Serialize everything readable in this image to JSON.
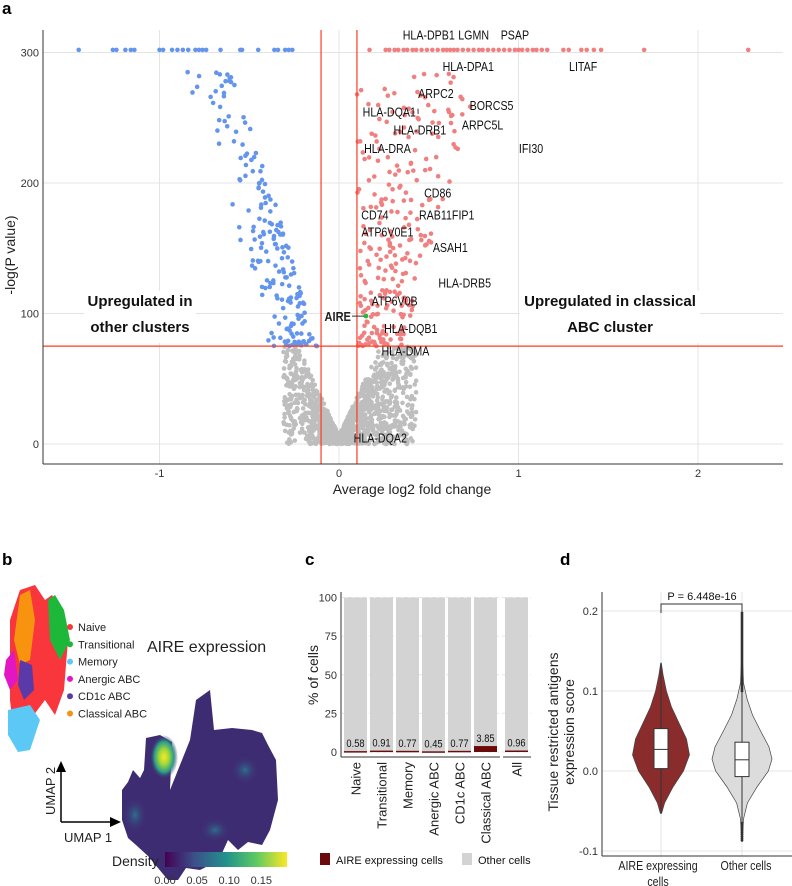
{
  "panels": {
    "a": "a",
    "b": "b",
    "c": "c",
    "d": "d"
  },
  "chart_data": [
    {
      "type": "scatter",
      "panel": "a",
      "xlabel": "Average log2 fold change",
      "ylabel": "-log(P value)",
      "xticks": [
        -1,
        0,
        1,
        2
      ],
      "yticks": [
        0,
        100,
        200,
        300
      ],
      "xlim": [
        -1.65,
        2.47
      ],
      "ylim": [
        -14,
        322
      ],
      "thresholds": {
        "fc": [
          -0.1,
          0.1
        ],
        "p": 75
      },
      "colors": {
        "down": "#6495ED",
        "up": "#F08080",
        "ns": "#BEBEBE",
        "highlight": "#22BB33",
        "threshold": "#FF3B1F"
      },
      "annotations": {
        "left": [
          "Upregulated in",
          "other clusters"
        ],
        "right": [
          "Upregulated in classical",
          "ABC cluster"
        ]
      },
      "capped_value": 302,
      "capped_down_x": [
        -1.45,
        -1.26,
        -1.24,
        -1.19,
        -1.16,
        -1.14,
        -1.0,
        -0.98,
        -0.93,
        -0.9,
        -0.87,
        -0.84,
        -0.8,
        -0.78,
        -0.76,
        -0.74,
        -0.66,
        -0.55,
        -0.54,
        -0.45,
        -0.36,
        -0.34,
        -0.3,
        -0.28,
        -0.26
      ],
      "capped_up_x": [
        0.17,
        0.26,
        0.28,
        0.31,
        0.33,
        0.36,
        0.38,
        0.41,
        0.43,
        0.46,
        0.49,
        0.52,
        0.55,
        0.58,
        0.6,
        0.62,
        0.64,
        0.66,
        0.69,
        0.72,
        0.75,
        0.78,
        0.8,
        0.83,
        0.86,
        0.89,
        0.92,
        0.95,
        0.98,
        1.0,
        1.02,
        1.05,
        1.08,
        1.1,
        1.13,
        1.16,
        1.25,
        1.28,
        1.35,
        1.38,
        1.42,
        1.46,
        1.7,
        2.28
      ],
      "n_down": 190,
      "n_up": 260,
      "n_ns": 1400,
      "genes": [
        {
          "name": "HLA-DPB1",
          "x": 0.5,
          "y": 310
        },
        {
          "name": "LGMN",
          "x": 0.75,
          "y": 310
        },
        {
          "name": "PSAP",
          "x": 0.98,
          "y": 310
        },
        {
          "name": "HLA-DPA1",
          "x": 0.72,
          "y": 286
        },
        {
          "name": "LITAF",
          "x": 1.36,
          "y": 286
        },
        {
          "name": "ARPC2",
          "x": 0.54,
          "y": 265
        },
        {
          "name": "HLA-DQA1",
          "x": 0.28,
          "y": 251
        },
        {
          "name": "BORCS5",
          "x": 0.85,
          "y": 256
        },
        {
          "name": "ARPC5L",
          "x": 0.8,
          "y": 241
        },
        {
          "name": "HLA-DRB1",
          "x": 0.45,
          "y": 237
        },
        {
          "name": "HLA-DRA",
          "x": 0.27,
          "y": 223
        },
        {
          "name": "IFI30",
          "x": 1.07,
          "y": 223
        },
        {
          "name": "CD86",
          "x": 0.55,
          "y": 189
        },
        {
          "name": "CD74",
          "x": 0.2,
          "y": 172
        },
        {
          "name": "RAB11FIP1",
          "x": 0.6,
          "y": 172
        },
        {
          "name": "ATP6V0E1",
          "x": 0.27,
          "y": 159
        },
        {
          "name": "ASAH1",
          "x": 0.62,
          "y": 147
        },
        {
          "name": "HLA-DRB5",
          "x": 0.7,
          "y": 120
        },
        {
          "name": "ATP6V0B",
          "x": 0.31,
          "y": 106
        },
        {
          "name": "HLA-DQB1",
          "x": 0.4,
          "y": 85
        },
        {
          "name": "HLA-DMA",
          "x": 0.37,
          "y": 68
        },
        {
          "name": "HLA-DQA2",
          "x": 0.23,
          "y": 1
        }
      ],
      "highlight_gene": {
        "name": "AIRE",
        "x": 0.15,
        "y": 98
      }
    },
    {
      "type": "heatmap",
      "panel": "b",
      "title": "AIRE expression",
      "xlabel": "UMAP 1",
      "ylabel": "UMAP 2",
      "colorbar_label": "Density",
      "colorbar_ticks": [
        "0.00",
        "0.05",
        "0.10",
        "0.15"
      ],
      "colorbar_range": [
        0,
        0.19
      ],
      "cluster_legend": [
        {
          "label": "Naive",
          "color": "#F8363C"
        },
        {
          "label": "Transitional",
          "color": "#1DB83A"
        },
        {
          "label": "Memory",
          "color": "#5BC8F5"
        },
        {
          "label": "Anergic ABC",
          "color": "#E316C4"
        },
        {
          "label": "CD1c ABC",
          "color": "#5A3AA8"
        },
        {
          "label": "Classical ABC",
          "color": "#F7930E"
        }
      ]
    },
    {
      "type": "bar",
      "panel": "c",
      "ylabel": "% of cells",
      "ylim": [
        0,
        100
      ],
      "yticks": [
        0,
        25,
        50,
        75,
        100
      ],
      "categories": [
        "Naive",
        "Transitional",
        "Memory",
        "Anergic ABC",
        "CD1c ABC",
        "Classical ABC",
        "All"
      ],
      "series": [
        {
          "name": "AIRE expressing cells",
          "color": "#6B0A0A",
          "values": [
            0.58,
            0.91,
            0.77,
            0.45,
            0.77,
            3.85,
            0.96
          ]
        },
        {
          "name": "Other cells",
          "color": "#D3D3D3",
          "values": [
            99.42,
            99.09,
            99.23,
            99.55,
            99.23,
            96.15,
            99.04
          ]
        }
      ],
      "labels": [
        "0.58",
        "0.91",
        "0.77",
        "0.45",
        "0.77",
        "3.85",
        "0.96"
      ]
    },
    {
      "type": "violin",
      "panel": "d",
      "ylabel": [
        "Tissue restricted antigens",
        "expression score"
      ],
      "ylim": [
        -0.105,
        0.225
      ],
      "yticks": [
        "-0.1",
        "0.0",
        "0.1",
        "0.2"
      ],
      "ytick_values": [
        -0.1,
        0.0,
        0.1,
        0.2
      ],
      "pvalue": "P = 6.448e-16",
      "groups": [
        {
          "label": [
            "AIRE expressing",
            "cells"
          ],
          "color": "#8B2C2C",
          "min": -0.053,
          "q1": 0.003,
          "median": 0.027,
          "q3": 0.053,
          "max": 0.135,
          "profile": [
            [
              -0.053,
              0.02
            ],
            [
              -0.04,
              0.12
            ],
            [
              -0.02,
              0.4
            ],
            [
              0.0,
              0.75
            ],
            [
              0.02,
              0.95
            ],
            [
              0.04,
              0.85
            ],
            [
              0.06,
              0.6
            ],
            [
              0.08,
              0.35
            ],
            [
              0.1,
              0.18
            ],
            [
              0.12,
              0.07
            ],
            [
              0.135,
              0.01
            ]
          ]
        },
        {
          "label": [
            "Other cells"
          ],
          "color": "#DCDCDC",
          "min": -0.088,
          "q1": -0.007,
          "median": 0.014,
          "q3": 0.036,
          "max": 0.2,
          "profile": [
            [
              -0.088,
              0.01
            ],
            [
              -0.06,
              0.05
            ],
            [
              -0.04,
              0.18
            ],
            [
              -0.02,
              0.5
            ],
            [
              0.0,
              0.88
            ],
            [
              0.015,
              1.0
            ],
            [
              0.03,
              0.9
            ],
            [
              0.05,
              0.62
            ],
            [
              0.07,
              0.35
            ],
            [
              0.09,
              0.17
            ],
            [
              0.11,
              0.05
            ],
            [
              0.14,
              0.015
            ],
            [
              0.2,
              0.005
            ]
          ]
        }
      ]
    }
  ]
}
